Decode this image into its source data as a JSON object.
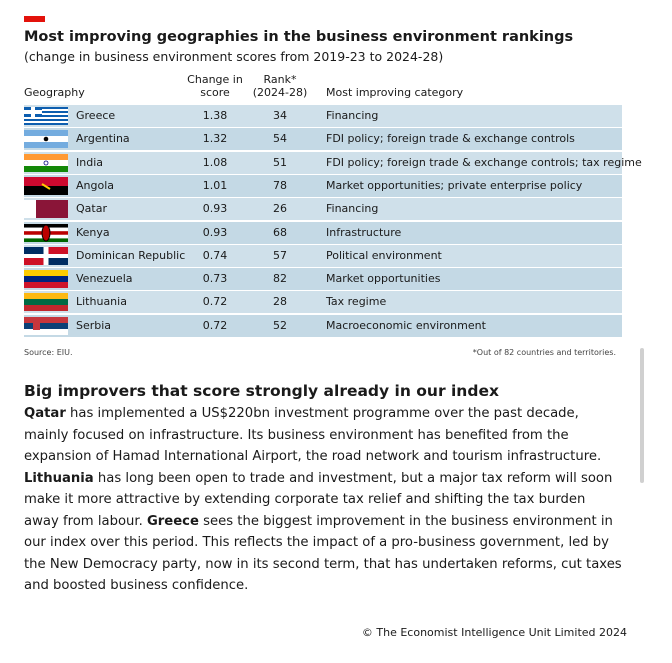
{
  "header": {
    "title": "Most improving geographies in the business environment rankings",
    "subtitle": "(change in business environment scores from 2019-23 to 2024-28)"
  },
  "table": {
    "columns": [
      "Geography",
      "Change in score",
      "Rank* (2024-28)",
      "Most improving category"
    ],
    "rows": [
      [
        "Greece",
        "1.38",
        "34",
        "Financing"
      ],
      [
        "Argentina",
        "1.32",
        "54",
        "FDI policy; foreign trade & exchange controls"
      ],
      [
        "India",
        "1.08",
        "51",
        "FDI policy; foreign trade & exchange controls; tax regime"
      ],
      [
        "Angola",
        "1.01",
        "78",
        "Market opportunities; private enterprise policy"
      ],
      [
        "Qatar",
        "0.93",
        "26",
        "Financing"
      ],
      [
        "Kenya",
        "0.93",
        "68",
        "Infrastructure"
      ],
      [
        "Dominican Republic",
        "0.74",
        "57",
        "Political environment"
      ],
      [
        "Venezuela",
        "0.73",
        "82",
        "Market opportunities"
      ],
      [
        "Lithuania",
        "0.72",
        "28",
        "Tax regime"
      ],
      [
        "Serbia",
        "0.72",
        "52",
        "Macroeconomic environment"
      ]
    ],
    "source": "Source: EIU.",
    "footnote": "*Out of 82 countries and territories."
  },
  "article": {
    "heading": "Big improvers that score strongly already in our index",
    "runs": [
      {
        "text": "Qatar",
        "bold": true
      },
      {
        "text": " has implemented a US$220bn investment programme over the past decade, mainly focused on infrastructure. Its business environment has benefited from the expansion of Hamad International Airport, the road network and tourism infrastructure. ",
        "bold": false
      },
      {
        "text": "Lithuania",
        "bold": true
      },
      {
        "text": " has long been open to trade and investment, but a major tax reform will soon make it more attractive by extending corporate tax relief and shifting the tax burden away from labour. ",
        "bold": false
      },
      {
        "text": "Greece",
        "bold": true
      },
      {
        "text": " sees the biggest improvement in the business environment in our index over this period. This reflects the impact of a pro-business government, led by the New Democracy party, now in its second term, that has undertaken reforms, cut taxes and boosted business confidence.",
        "bold": false
      }
    ]
  },
  "footer": {
    "copyright": "© The Economist Intelligence Unit Limited 2024"
  }
}
